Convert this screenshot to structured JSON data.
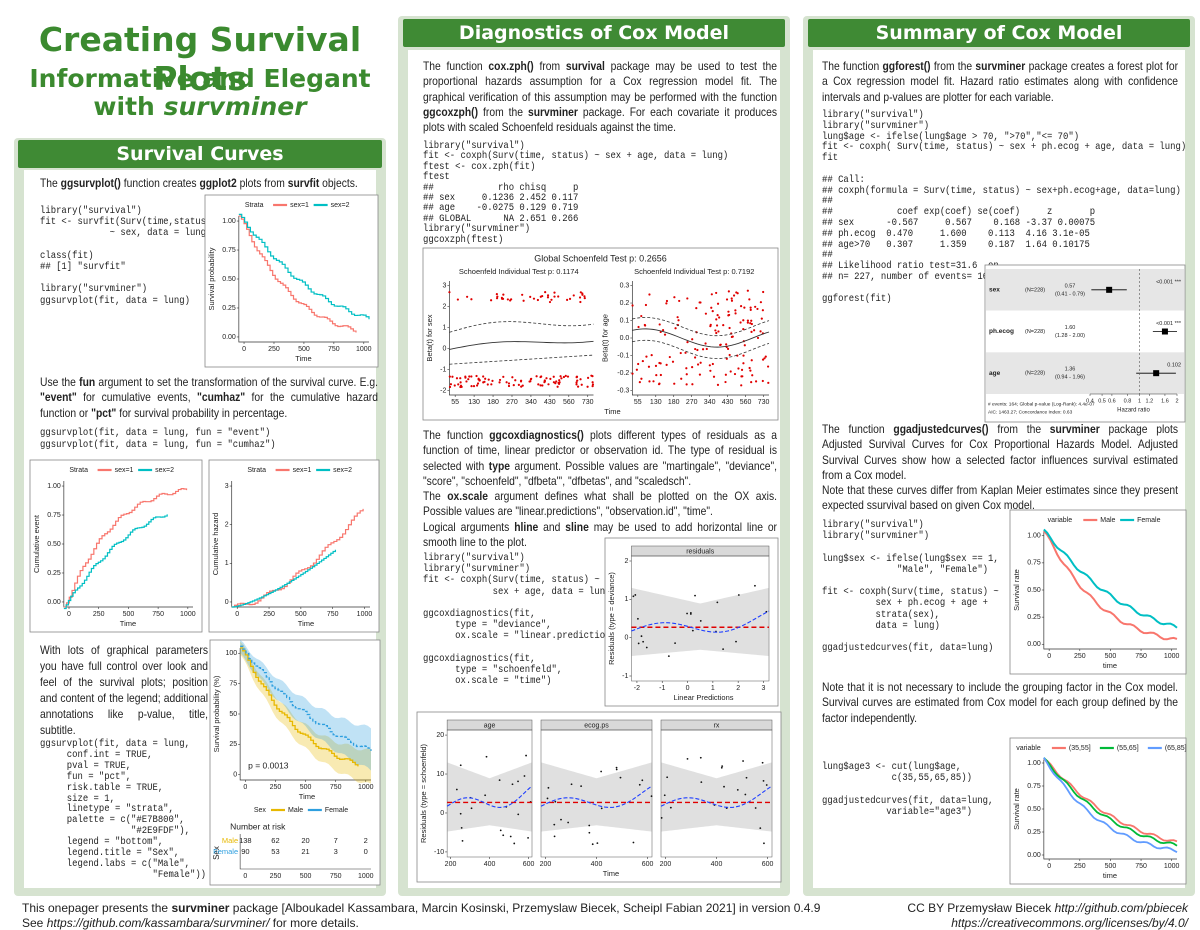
{
  "header": {
    "title": "Creating Survival Plots",
    "subtitle": "Informative and Elegant",
    "byline": [
      "with",
      {
        "i": "survminer"
      }
    ]
  },
  "left": {
    "heading": "Survival Curves",
    "p1": [
      [
        "The ",
        {
          "b": "ggsurvplot()"
        },
        " function creates ",
        {
          "b": "ggplot2"
        },
        " plots from ",
        {
          "b": "survfit"
        },
        " objects."
      ]
    ],
    "code1": [
      [
        "library(\"survival\")",
        "fit <- survfit(Surv(time,status)",
        "             ~ sex, data = lung)"
      ],
      [
        "class(fit)",
        "## [1] \"survfit\""
      ],
      [
        "library(\"survminer\")",
        "ggsurvplot(fit, data = lung)"
      ]
    ],
    "p2": [
      [
        "Use the ",
        {
          "b": "fun"
        },
        " argument to set the transformation of the survival curve. E.g. ",
        {
          "b": "\"event\""
        },
        " for cumulative events, ",
        {
          "b": "\"cumhaz\""
        },
        " for the cumulative hazard function or ",
        {
          "b": "\"pct\""
        },
        " for survival probability in percentage."
      ]
    ],
    "code2": [
      [
        "ggsurvplot(fit, data = lung, fun = \"event\")",
        "ggsurvplot(fit, data = lung, fun = \"cumhaz\")"
      ]
    ],
    "p3": [
      [
        "With lots of graphical parameters you have full control over look and feel of the survival plots; position and content of the legend; additional annotations like p-value, title, subtitle."
      ]
    ],
    "code3": [
      [
        "ggsurvplot(fit, data = lung,",
        "     conf.int = TRUE,",
        "     pval = TRUE,",
        "     fun = \"pct\",",
        "     risk.table = TRUE,",
        "     size = 1,",
        "     linetype = \"strata\",",
        "     palette = c(\"#E7B800\",",
        "                 \"#2E9FDF\"),",
        "     legend = \"bottom\",",
        "     legend.title = \"Sex\",",
        "     legend.labs = c(\"Male\",",
        "                     \"Female\"))"
      ]
    ]
  },
  "middle": {
    "heading": "Diagnostics of Cox Model",
    "p1": [
      [
        "The function ",
        {
          "b": "cox.zph()"
        },
        " from ",
        {
          "b": "survival"
        },
        " package may be used to test the proportional hazards assumption for a Cox regression model fit. The graphical verification of this assumption may be performed with the function ",
        {
          "b": "ggcoxzph()"
        },
        " from the ",
        {
          "b": "survminer"
        },
        " package. For each covariate it produces plots with scaled Schoenfeld residuals against the time."
      ]
    ],
    "code1": [
      [
        "library(\"survival\")",
        "fit <- coxph(Surv(time, status) ~ sex + age, data = lung)",
        "ftest <- cox.zph(fit)",
        "ftest",
        "##            rho chisq     p",
        "## sex     0.1236 2.452 0.117",
        "## age    -0.0275 0.129 0.719",
        "## GLOBAL      NA 2.651 0.266",
        "library(\"survminer\")",
        "ggcoxzph(ftest)"
      ]
    ],
    "p2": [
      [
        "The function ",
        {
          "b": "ggcoxdiagnostics()"
        },
        " plots different types of residuals as a function of time, linear predictor or observation id. The type of residual is selected with ",
        {
          "b": "type"
        },
        " argument. Possible values are \"martingale\", \"deviance\", \"score\", \"schoenfeld\", \"dfbeta\"', \"dfbetas\", and \"scaledsch\"."
      ],
      [
        "The ",
        {
          "b": "ox.scale"
        },
        " argument defines what shall be plotted on the OX axis. Possible values are \"linear.predictions\", \"observation.id\", \"time\"."
      ],
      [
        "Logical arguments ",
        {
          "b": "hline"
        },
        " and ",
        {
          "b": "sline"
        },
        " may be used to add horizontal line or smooth line to the plot."
      ]
    ],
    "code2": [
      [
        "library(\"survival\")",
        "library(\"survminer\")",
        "fit <- coxph(Surv(time, status) ~",
        "             sex + age, data = lung)"
      ],
      [
        "ggcoxdiagnostics(fit,",
        "      type = \"deviance\",",
        "      ox.scale = \"linear.predictions\")"
      ],
      [
        "ggcoxdiagnostics(fit,",
        "      type = \"schoenfeld\",",
        "      ox.scale = \"time\")"
      ]
    ]
  },
  "right": {
    "heading": "Summary of Cox Model",
    "p1": [
      [
        "The function ",
        {
          "b": "ggforest()"
        },
        " from the ",
        {
          "b": "survminer"
        },
        " package creates a forest plot for a Cox regression model fit. Hazard ratio estimates along with confidence intervals and p-values are plotter for each variable."
      ]
    ],
    "code1": [
      [
        "library(\"survival\")",
        "library(\"survminer\")",
        "lung$age <- ifelse(lung$age > 70, \">70\",\"<= 70\")",
        "fit <- coxph( Surv(time, status) ~ sex + ph.ecog + age, data = lung)",
        "fit"
      ],
      [
        "## Call:",
        "## coxph(formula = Surv(time, status) ~ sex+ph.ecog+age, data=lung)",
        "##",
        "##            coef exp(coef) se(coef)     z       p",
        "## sex      -0.567     0.567    0.168 -3.37 0.00075",
        "## ph.ecog  0.470     1.600    0.113  4.16 3.1e-05",
        "## age>70   0.307     1.359    0.187  1.64 0.10175",
        "##",
        "## Likelihood ratio test=31.6  on",
        "## n= 227, number of events= 164"
      ],
      [
        "ggforest(fit)"
      ]
    ],
    "p2": [
      [
        "The function ",
        {
          "b": "ggadjustedcurves()"
        },
        " from the ",
        {
          "b": "survminer"
        },
        " package plots Adjusted Survival Curves for Cox Proportional Hazards Model. Adjusted Survival Curves show how a selected factor influences survival estimated from a Cox model."
      ],
      [
        "Note that these curves differ from Kaplan Meier estimates since they present expected ssurvival based on given Cox model."
      ]
    ],
    "code2": [
      [
        "library(\"survival\")",
        "library(\"survminer\")"
      ],
      [
        "lung$sex <- ifelse(lung$sex == 1,",
        "              \"Male\", \"Female\")"
      ],
      [
        "fit <- coxph(Surv(time, status) ~",
        "          sex + ph.ecog + age +",
        "          strata(sex),",
        "          data = lung)"
      ],
      [
        "ggadjustedcurves(fit, data=lung)"
      ]
    ],
    "p3": [
      [
        "Note that it is not necessary to include the grouping factor in the Cox model. Survival curves are estimated from Cox model for each group defined by the factor independently."
      ]
    ],
    "code3": [
      [
        "lung$age3 <- cut(lung$age,",
        "             c(35,55,65,85))"
      ],
      [
        "ggadjustedcurves(fit, data=lung,",
        "            variable=\"age3\")"
      ]
    ]
  },
  "plots": {
    "surv_basic": {
      "legend_title": "Strata",
      "legend": [
        "sex=1",
        "sex=2"
      ],
      "colors": [
        "#F8766D",
        "#00BFC4"
      ],
      "ylabel": "Survival probability",
      "xlabel": "Time",
      "yticks": [
        "0.00",
        "0.25",
        "0.50",
        "0.75",
        "1.00"
      ],
      "xticks": [
        "0",
        "250",
        "500",
        "750",
        "1000"
      ]
    },
    "cum_event": {
      "legend_title": "Strata",
      "legend": [
        "sex=1",
        "sex=2"
      ],
      "colors": [
        "#F8766D",
        "#00BFC4"
      ],
      "ylabel": "Cumulative event",
      "xlabel": "Time",
      "yticks": [
        "0.00",
        "0.25",
        "0.50",
        "0.75",
        "1.00"
      ],
      "xticks": [
        "0",
        "250",
        "500",
        "750",
        "1000"
      ]
    },
    "cum_hazard": {
      "legend_title": "Strata",
      "legend": [
        "sex=1",
        "sex=2"
      ],
      "colors": [
        "#F8766D",
        "#00BFC4"
      ],
      "ylabel": "Cumulative hazard",
      "xlabel": "Time",
      "yticks": [
        "0",
        "1",
        "2",
        "3"
      ],
      "xticks": [
        "0",
        "250",
        "500",
        "750",
        "1000"
      ]
    },
    "surv_pct": {
      "legend_title": "Sex",
      "legend": [
        "Male",
        "Female"
      ],
      "colors": [
        "#E7B800",
        "#2E9FDF"
      ],
      "legend_position": "bottom",
      "ylabel": "Survival probability (%)",
      "xlabel": "Time",
      "yticks": [
        "0",
        "25",
        "50",
        "75",
        "100"
      ],
      "xticks": [
        "0",
        "250",
        "500",
        "750",
        "1000"
      ],
      "annotation": "p = 0.0013",
      "risk": {
        "title": "Number at risk",
        "ylabel": "Sex",
        "rows": [
          {
            "name": "Male",
            "values": [
              138,
              62,
              20,
              7,
              2
            ]
          },
          {
            "name": "Female",
            "values": [
              90,
              53,
              21,
              3,
              0
            ]
          }
        ]
      }
    },
    "schoenfeld": {
      "title": "Global Schoenfeld Test p: 0.2656",
      "xlabel": "Time",
      "xticks": [
        "55",
        "130",
        "180",
        "270",
        "340",
        "430",
        "560",
        "730"
      ],
      "panels": [
        {
          "title": "Schoenfeld Individual Test p: 0.1174",
          "ylabel": "Beta(t) for sex",
          "yticks": [
            "-2",
            "-1",
            "0",
            "1",
            "2",
            "3"
          ]
        },
        {
          "title": "Schoenfeld Individual Test p: 0.7192",
          "ylabel": "Beta(t) for age",
          "yticks": [
            "-0.3",
            "-0.2",
            "-0.1",
            "0.0",
            "0.1",
            "0.2",
            "0.3"
          ]
        }
      ]
    },
    "residuals": {
      "ylabel": "Residuals (type = deviance)",
      "xlabel": "Linear Predictions",
      "yticks": [
        "-1",
        "0",
        "1",
        "2"
      ],
      "xticks": [
        "-2",
        "-1",
        "0",
        "1",
        "2",
        "3"
      ],
      "panels": [
        {
          "strip": "residuals"
        }
      ]
    },
    "facets": {
      "ylabel": "Residuals (type = schoenfeld)",
      "xlabel": "Time",
      "yticks": [
        "-10",
        "0",
        "10",
        "20"
      ],
      "xticks": [
        "200",
        "400",
        "600"
      ],
      "panels": [
        {
          "strip": "age"
        },
        {
          "strip": "ecog.ps"
        },
        {
          "strip": "rx"
        }
      ]
    },
    "adjusted": {
      "legend_title": "variable",
      "legend": [
        "Male",
        "Female"
      ],
      "colors": [
        "#F8766D",
        "#00BFC4"
      ],
      "ylabel": "Survival rate",
      "xlabel": "time",
      "yticks": [
        "0.00",
        "0.25",
        "0.50",
        "0.75",
        "1.00"
      ],
      "xticks": [
        "0",
        "250",
        "500",
        "750",
        "1000"
      ]
    },
    "adjusted_age": {
      "legend_title": "variable",
      "legend": [
        "(35,55]",
        "(55,65]",
        "(65,85]"
      ],
      "colors": [
        "#F8766D",
        "#00BA38",
        "#619CFF"
      ],
      "ylabel": "Survival rate",
      "xlabel": "time",
      "yticks": [
        "0.00",
        "0.25",
        "0.50",
        "0.75",
        "1.00"
      ],
      "xticks": [
        "0",
        "250",
        "500",
        "750",
        "1000"
      ]
    },
    "forest": {
      "rows": [
        {
          "name": "sex",
          "n": "(N=228)",
          "hr": "0.57",
          "ci": "(0.41 - 0.79)",
          "p": "<0.001 ***"
        },
        {
          "name": "ph.ecog",
          "n": "(N=228)",
          "hr": "1.60",
          "ci": "(1.28 - 2.00)",
          "p": "<0.001 ***"
        },
        {
          "name": "age",
          "n": "(N=228)",
          "hr": "1.36",
          "ci": "(0.94 - 1.96)",
          "p": "0.102"
        }
      ],
      "notes": [
        "# events: 164; Global p-value (Log-Rank): 4.4e-07",
        "AIC: 1463.27; Concordance Index: 0.63"
      ],
      "xticks": [
        "0.4",
        "0.5",
        "0.6",
        "0.8",
        "1",
        "1.2",
        "1.6",
        "2"
      ],
      "xlabel": "Hazard ratio"
    }
  },
  "footer": {
    "left": [
      [
        "This onepager presents the ",
        {
          "b": "survminer"
        },
        " package [Alboukadel Kassambara, Marcin Kosinski, Przemyslaw Biecek, Scheipl Fabian 2021] in version  0.4.9"
      ],
      [
        "See ",
        {
          "i": "https://github.com/kassambara/survminer/"
        },
        " for more details."
      ]
    ],
    "right": [
      [
        "CC BY Przemysław Biecek ",
        {
          "i": "http://github.com/pbiecek"
        }
      ],
      [
        {
          "i": "https://creativecommons.org/licenses/by/4.0/"
        }
      ]
    ]
  }
}
